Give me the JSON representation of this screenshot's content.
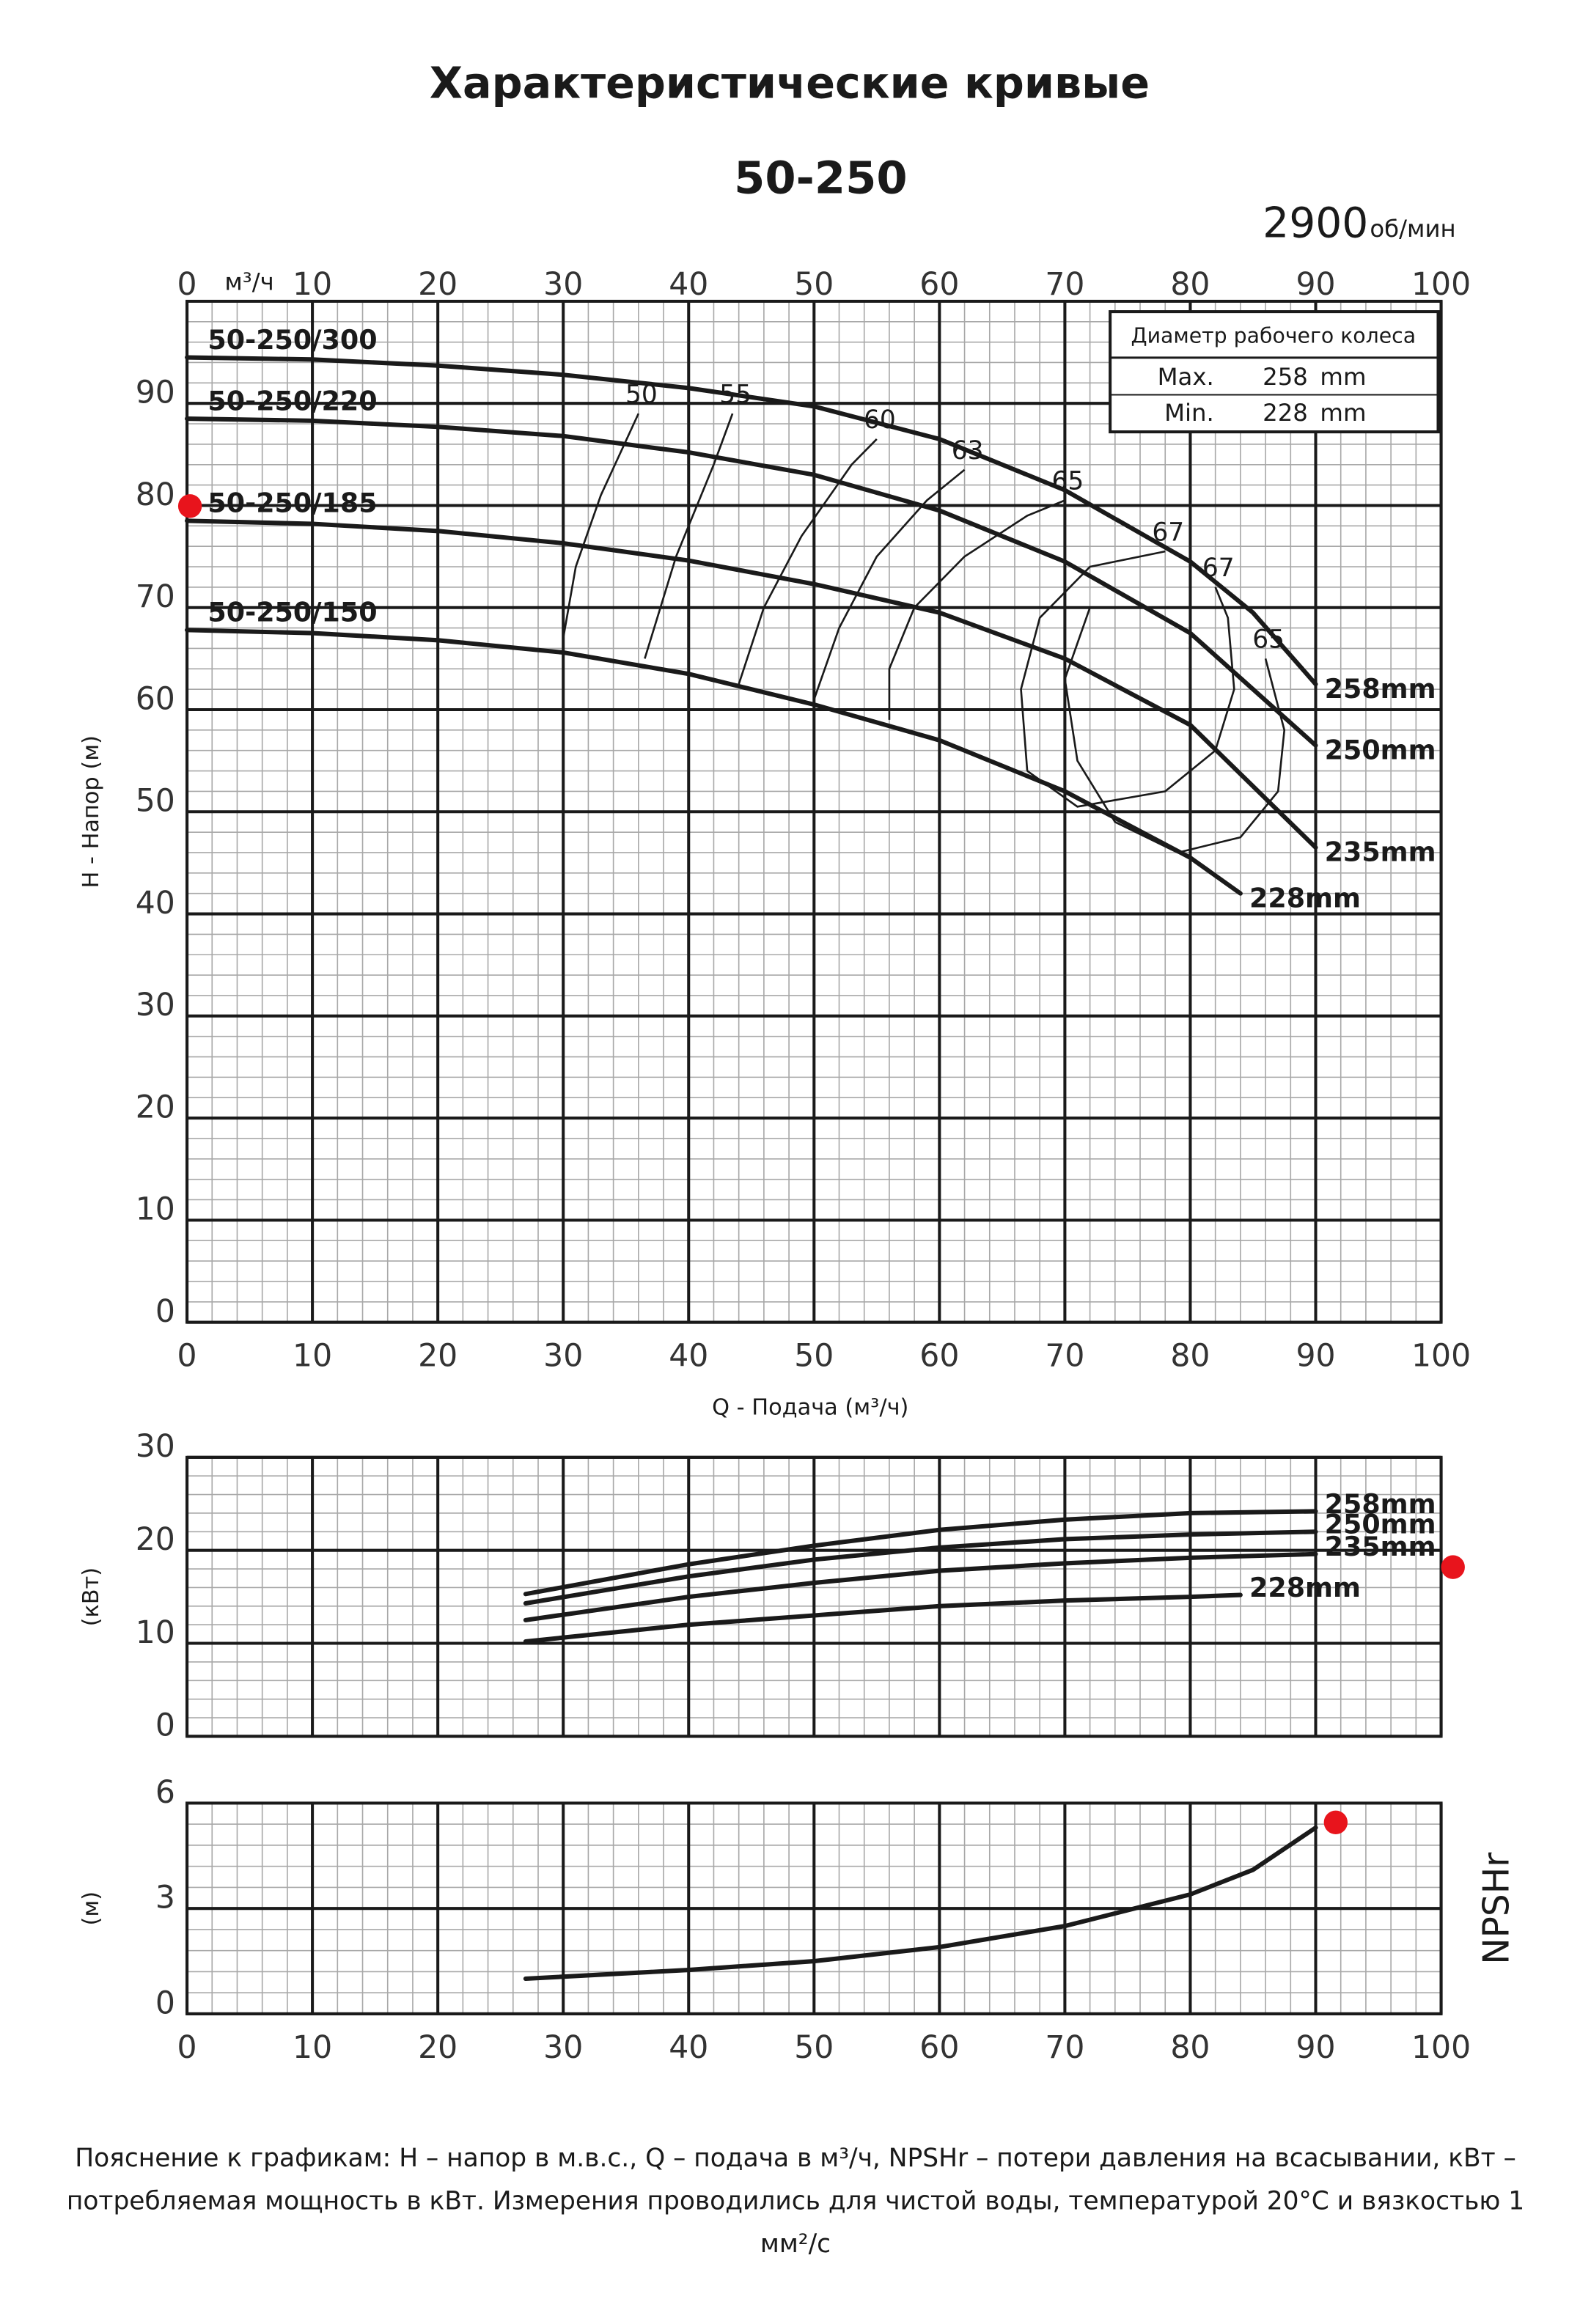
{
  "header": {
    "title": "Характеристические кривые",
    "model": "50-250",
    "speed": "2900",
    "speed_unit": "об/мин"
  },
  "footnote": [
    "Пояснение к графикам: H – напор в м.в.с., Q – подача в м³/ч, NPSHr – потери давления на всасывании, кВт –",
    "потребляемая мощность в кВт. Измерения проводились для чистой воды, температурой 20°C и вязкостью 1",
    "мм²/с"
  ],
  "chart_data": [
    {
      "type": "line",
      "ylabel": "H - Напор (м)",
      "xlabel": "Q - Подача (м³/ч)",
      "x2_unit": "м³/ч",
      "xlim": [
        0,
        100
      ],
      "xticks": [
        0,
        10,
        20,
        30,
        40,
        50,
        60,
        70,
        80,
        90,
        100
      ],
      "ylim": [
        0,
        100
      ],
      "yticks": [
        0,
        10,
        20,
        30,
        40,
        50,
        60,
        70,
        80,
        90
      ],
      "grid": true,
      "color": "#1a1a1a",
      "series": [
        {
          "name": "258mm",
          "model": "50-250/300",
          "x": [
            0,
            10,
            20,
            30,
            40,
            50,
            60,
            70,
            80,
            85,
            90
          ],
          "values": [
            94.5,
            94.3,
            93.7,
            92.8,
            91.5,
            89.7,
            86.5,
            81.5,
            74.5,
            69.5,
            62.5
          ]
        },
        {
          "name": "250mm",
          "model": "50-250/220",
          "x": [
            0,
            10,
            20,
            30,
            40,
            50,
            60,
            70,
            80,
            90
          ],
          "values": [
            88.5,
            88.3,
            87.7,
            86.8,
            85.2,
            83,
            79.5,
            74.5,
            67.5,
            56.5
          ]
        },
        {
          "name": "235mm",
          "model": "50-250/185",
          "x": [
            0,
            10,
            20,
            30,
            40,
            50,
            60,
            70,
            80,
            90
          ],
          "values": [
            78.5,
            78.2,
            77.5,
            76.3,
            74.6,
            72.3,
            69.5,
            65,
            58.5,
            46.5
          ]
        },
        {
          "name": "228mm",
          "model": "50-250/150",
          "x": [
            0,
            10,
            20,
            30,
            40,
            50,
            60,
            70,
            80,
            84
          ],
          "values": [
            67.8,
            67.5,
            66.8,
            65.6,
            63.5,
            60.5,
            57,
            52,
            45.5,
            42
          ]
        }
      ],
      "efficiency_curves": [
        {
          "name": "50",
          "x": [
            30,
            31,
            33,
            36
          ],
          "values": [
            67,
            74,
            81,
            89
          ]
        },
        {
          "name": "55",
          "x": [
            36.5,
            39,
            42,
            43.5
          ],
          "values": [
            65,
            75,
            84,
            89
          ]
        },
        {
          "name": "60",
          "x": [
            44,
            46,
            49,
            53,
            55
          ],
          "values": [
            62.5,
            70,
            77,
            84,
            86.5
          ]
        },
        {
          "name": "63",
          "x": [
            50,
            52,
            55,
            59,
            62
          ],
          "values": [
            61,
            68,
            75,
            80.5,
            83.5
          ]
        },
        {
          "name": "65",
          "x": [
            56,
            56,
            58,
            62,
            67,
            70
          ],
          "values": [
            59,
            64,
            70,
            75,
            79,
            80.5
          ]
        },
        {
          "name": "67",
          "x": [
            67,
            66.5,
            68,
            72,
            78
          ],
          "values": [
            54,
            62,
            69,
            74,
            75.5
          ]
        },
        {
          "name": "67",
          "x": [
            67,
            71,
            78,
            82,
            83.5,
            83,
            82
          ],
          "values": [
            54,
            50.5,
            52,
            56,
            62,
            69,
            72
          ]
        },
        {
          "name": "65",
          "x": [
            72,
            70,
            71,
            74,
            79,
            84,
            87,
            87.5,
            86
          ],
          "values": [
            70,
            63,
            55,
            49,
            46,
            47.5,
            52,
            58,
            65
          ]
        }
      ],
      "impeller_table": {
        "title": "Диаметр рабочего колеса",
        "rows": [
          [
            "Max.",
            "258",
            "mm"
          ],
          [
            "Min.",
            "228",
            "mm"
          ]
        ]
      }
    },
    {
      "type": "line",
      "ylabel": "(кВт)",
      "xlim": [
        0,
        100
      ],
      "xticks": [
        0,
        10,
        20,
        30,
        40,
        50,
        60,
        70,
        80,
        90,
        100
      ],
      "ylim": [
        0,
        30
      ],
      "yticks": [
        0,
        10,
        20,
        30
      ],
      "grid": true,
      "color": "#1a1a1a",
      "series": [
        {
          "name": "258mm",
          "x": [
            27,
            40,
            50,
            60,
            70,
            80,
            90
          ],
          "values": [
            15.3,
            18.5,
            20.5,
            22.2,
            23.3,
            24,
            24.2
          ]
        },
        {
          "name": "250mm",
          "x": [
            27,
            40,
            50,
            60,
            70,
            80,
            90
          ],
          "values": [
            14.3,
            17.2,
            19,
            20.3,
            21.2,
            21.7,
            22
          ]
        },
        {
          "name": "235mm",
          "x": [
            27,
            40,
            50,
            60,
            70,
            80,
            90
          ],
          "values": [
            12.5,
            15,
            16.5,
            17.8,
            18.6,
            19.2,
            19.6
          ]
        },
        {
          "name": "228mm",
          "x": [
            27,
            40,
            50,
            60,
            70,
            80,
            84
          ],
          "values": [
            10.2,
            12,
            13,
            14,
            14.6,
            15,
            15.2
          ]
        }
      ]
    },
    {
      "type": "line",
      "ylabel": "(м)",
      "xlim": [
        0,
        100
      ],
      "xticks": [
        0,
        10,
        20,
        30,
        40,
        50,
        60,
        70,
        80,
        90,
        100
      ],
      "ylim": [
        0,
        6
      ],
      "yticks": [
        0,
        3,
        6
      ],
      "grid": true,
      "color": "#1a1a1a",
      "series": [
        {
          "name": "NPSHr",
          "x": [
            27,
            40,
            50,
            60,
            70,
            80,
            85,
            90
          ],
          "values": [
            1,
            1.25,
            1.5,
            1.9,
            2.5,
            3.4,
            4.1,
            5.3
          ]
        }
      ]
    }
  ]
}
